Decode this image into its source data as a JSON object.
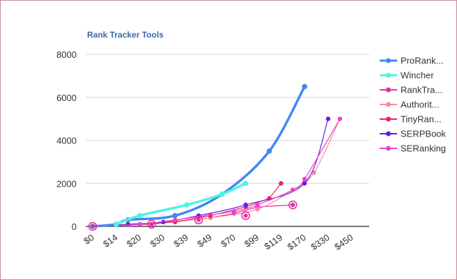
{
  "chart_data": {
    "type": "line",
    "title": "Rank Tracker Tools",
    "categories": [
      "$0",
      "$14",
      "$20",
      "$30",
      "$39",
      "$49",
      "$70",
      "$99",
      "$119",
      "$170",
      "$330",
      "$450"
    ],
    "ylim": [
      0,
      8000
    ],
    "yticks": [
      0,
      2000,
      4000,
      6000,
      8000
    ],
    "grid": true,
    "legend_position": "right",
    "series": [
      {
        "name": "ProRank...",
        "color": "#4286f4",
        "width": 3.5,
        "smooth": true,
        "points": [
          [
            0,
            0
          ],
          [
            1,
            100
          ],
          [
            1.5,
            300
          ],
          [
            3.5,
            500
          ],
          [
            5.5,
            1500
          ],
          [
            7.5,
            3500
          ],
          [
            9,
            6500
          ]
        ]
      },
      {
        "name": "Wincher",
        "color": "#4df5e0",
        "width": 3.5,
        "smooth": true,
        "points": [
          [
            1,
            100
          ],
          [
            2,
            500
          ],
          [
            4,
            1000
          ],
          [
            5.5,
            1500
          ],
          [
            6.5,
            2000
          ]
        ]
      },
      {
        "name": "RankTra...",
        "color": "#e62fa0",
        "width": 1.2,
        "smooth": false,
        "points": [
          [
            0,
            0
          ],
          [
            2.5,
            100
          ],
          [
            5,
            400
          ],
          [
            6,
            600
          ],
          [
            7,
            900
          ],
          [
            8.5,
            1000
          ]
        ]
      },
      {
        "name": "Authorit...",
        "color": "#f08c9d",
        "width": 1.2,
        "smooth": true,
        "points": [
          [
            0,
            0
          ],
          [
            1.5,
            50
          ],
          [
            3,
            200
          ],
          [
            5,
            400
          ],
          [
            7,
            800
          ],
          [
            8.5,
            1700
          ],
          [
            9.4,
            2500
          ],
          [
            10.5,
            5000
          ]
        ]
      },
      {
        "name": "TinyRan...",
        "color": "#ee2255",
        "width": 1.2,
        "smooth": false,
        "points": [
          [
            0,
            0
          ],
          [
            3.5,
            200
          ],
          [
            5,
            500
          ],
          [
            6.5,
            900
          ],
          [
            7.5,
            1300
          ],
          [
            8,
            2000
          ]
        ]
      },
      {
        "name": "SERPBook",
        "color": "#6321e0",
        "width": 1.2,
        "smooth": true,
        "points": [
          [
            0,
            0
          ],
          [
            1.5,
            100
          ],
          [
            3,
            200
          ],
          [
            4.5,
            500
          ],
          [
            6.5,
            1000
          ],
          [
            9,
            2000
          ],
          [
            10,
            5000
          ]
        ]
      },
      {
        "name": "SERanking",
        "color": "#f03ed2",
        "width": 1.2,
        "smooth": true,
        "points": [
          [
            0,
            0
          ],
          [
            2,
            100
          ],
          [
            3.5,
            300
          ],
          [
            6,
            700
          ],
          [
            7,
            1000
          ],
          [
            8.5,
            1700
          ],
          [
            9,
            2200
          ],
          [
            10.5,
            5000
          ]
        ]
      }
    ],
    "highlighted_points": [
      [
        0,
        0
      ],
      [
        2.5,
        100
      ],
      [
        4.5,
        300
      ],
      [
        6.5,
        500
      ],
      [
        8.5,
        1000
      ]
    ]
  }
}
